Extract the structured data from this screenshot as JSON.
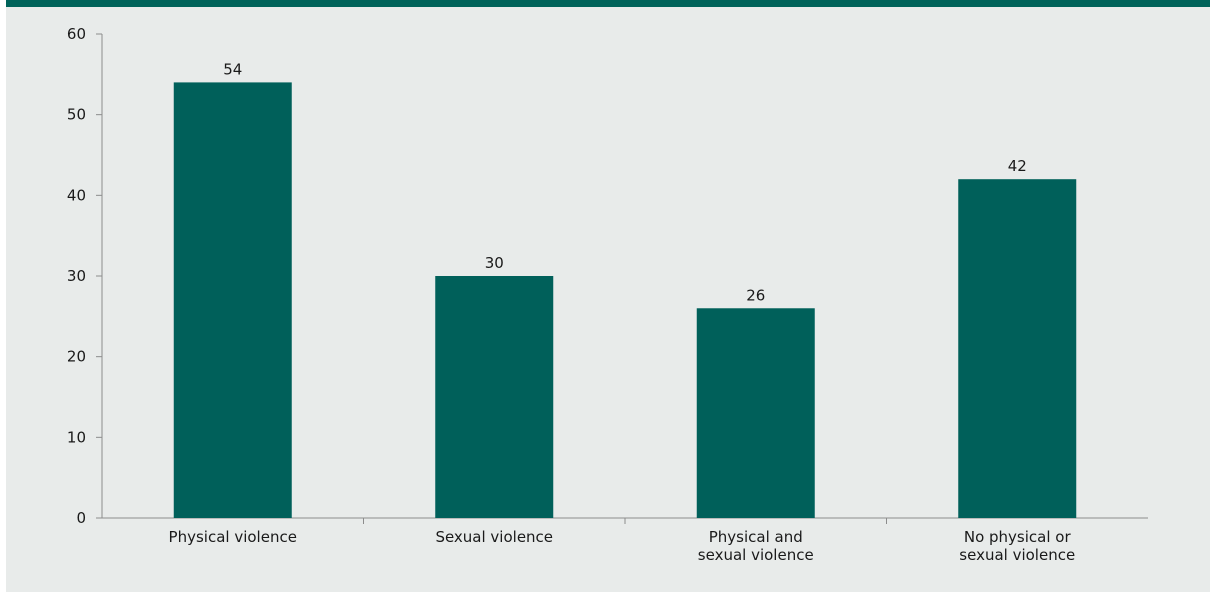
{
  "colors": {
    "background": "#e8ebea",
    "top_band": "#00635a",
    "bar": "#00605a",
    "axis": "#8c8c8c",
    "text": "#1a1a1a"
  },
  "chart_data": {
    "type": "bar",
    "title": "",
    "xlabel": "",
    "ylabel": "",
    "categories": [
      [
        "Physical violence"
      ],
      [
        "Sexual violence"
      ],
      [
        "Physical and",
        "sexual violence"
      ],
      [
        "No physical or",
        "sexual violence"
      ]
    ],
    "values": [
      54,
      30,
      26,
      42
    ],
    "data_labels": [
      "54",
      "30",
      "26",
      "42"
    ],
    "ylim": [
      0,
      60
    ],
    "yticks": [
      0,
      10,
      20,
      30,
      40,
      50,
      60
    ],
    "grid": false,
    "legend": "none"
  }
}
